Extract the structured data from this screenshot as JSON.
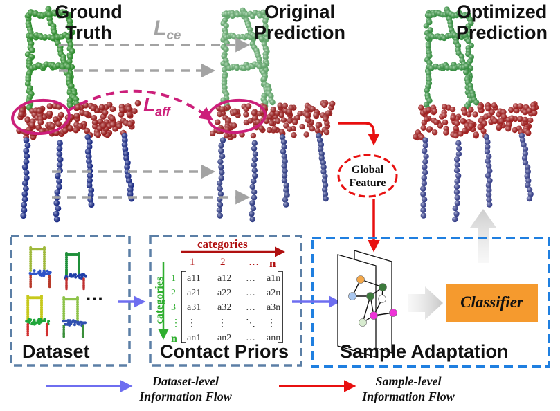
{
  "panels": {
    "ground_truth": {
      "line1": "Ground",
      "line2": "Truth"
    },
    "original": {
      "line1": "Original",
      "line2": "Prediction"
    },
    "optimized": {
      "line1": "Optimized",
      "line2": "Prediction"
    }
  },
  "loss_ce": {
    "main": "L",
    "sub": "ce"
  },
  "loss_aff": {
    "main": "L",
    "sub": "aff"
  },
  "global_feature": {
    "line1": "Global",
    "line2": "Feature"
  },
  "boxes": {
    "dataset": "Dataset",
    "contact_priors": "Contact Priors",
    "sample_adaptation": "Sample Adaptation"
  },
  "ellipsis": "···",
  "matrix": {
    "top_label": "categories",
    "side_label": "categories",
    "col_headers": [
      "1",
      "2",
      "…",
      "n"
    ],
    "row_headers": [
      "1",
      "2",
      "3",
      "⋮",
      "n"
    ],
    "rows": [
      [
        "a11",
        "a12",
        "…",
        "a1n"
      ],
      [
        "a21",
        "a22",
        "…",
        "a2n"
      ],
      [
        "a31",
        "a32",
        "…",
        "a3n"
      ],
      [
        "⋮",
        "⋮",
        "⋱",
        "⋮"
      ],
      [
        "an1",
        "an2",
        "…",
        "ann"
      ]
    ]
  },
  "classifier": "Classifier",
  "legend": {
    "dataset_flow": {
      "line1": "Dataset-level",
      "line2": "Information Flow"
    },
    "sample_flow": {
      "line1": "Sample-level",
      "line2": "Information Flow"
    }
  },
  "colors": {
    "gt_back": "#2fa82f",
    "gt_seat": "#b71c1c",
    "gt_legs": "#1a2fa0",
    "orig_back": "#6ec67a",
    "orig_seat": "#b82424",
    "orig_legs": "#34449e",
    "optimized_back": "#3cab4a",
    "optimized_seat": "#c02020",
    "optimized_legs": "#3f4aa6",
    "loss_arrow": "#cc1f7a",
    "ce_arrow": "#a3a3a3",
    "dataset_flow": "#6e6ef0",
    "sample_flow": "#e81010",
    "box_border": "#5b7fa6",
    "adapt_border": "#1f7fe0",
    "classifier_fill": "#f59a2e"
  },
  "icons": [
    "chair-point-cloud-icon",
    "graph-node-icon"
  ]
}
